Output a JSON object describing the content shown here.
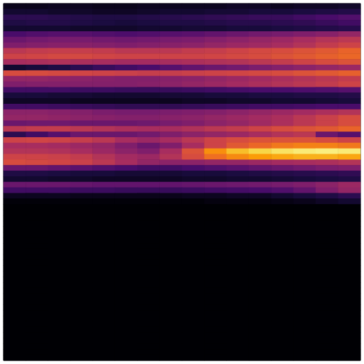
{
  "chart_data": {
    "type": "heatmap",
    "color": "inferno",
    "tick_labels": false,
    "color_range": [
      0,
      1
    ],
    "cells": [
      [
        0.04,
        0.04,
        0.05,
        0.05,
        0.04,
        0.04,
        0.05,
        0.05,
        0.05,
        0.05,
        0.06,
        0.06,
        0.05,
        0.06,
        0.06,
        0.07
      ],
      [
        0.08,
        0.08,
        0.07,
        0.07,
        0.06,
        0.06,
        0.07,
        0.08,
        0.08,
        0.09,
        0.09,
        0.1,
        0.1,
        0.11,
        0.12,
        0.13
      ],
      [
        0.15,
        0.15,
        0.14,
        0.13,
        0.12,
        0.12,
        0.13,
        0.14,
        0.15,
        0.16,
        0.17,
        0.18,
        0.18,
        0.2,
        0.22,
        0.24
      ],
      [
        0.12,
        0.13,
        0.13,
        0.12,
        0.11,
        0.1,
        0.11,
        0.12,
        0.12,
        0.13,
        0.14,
        0.14,
        0.15,
        0.16,
        0.18,
        0.2
      ],
      [
        0.08,
        0.08,
        0.08,
        0.07,
        0.07,
        0.07,
        0.08,
        0.08,
        0.09,
        0.09,
        0.1,
        0.1,
        0.11,
        0.12,
        0.13,
        0.14
      ],
      [
        0.22,
        0.24,
        0.25,
        0.25,
        0.24,
        0.23,
        0.24,
        0.25,
        0.26,
        0.28,
        0.3,
        0.32,
        0.33,
        0.35,
        0.37,
        0.4
      ],
      [
        0.3,
        0.32,
        0.33,
        0.33,
        0.32,
        0.31,
        0.32,
        0.33,
        0.34,
        0.36,
        0.38,
        0.4,
        0.42,
        0.45,
        0.48,
        0.5
      ],
      [
        0.35,
        0.36,
        0.37,
        0.37,
        0.36,
        0.35,
        0.36,
        0.37,
        0.38,
        0.4,
        0.42,
        0.43,
        0.45,
        0.48,
        0.52,
        0.55
      ],
      [
        0.5,
        0.52,
        0.53,
        0.53,
        0.52,
        0.5,
        0.5,
        0.5,
        0.52,
        0.53,
        0.55,
        0.57,
        0.58,
        0.6,
        0.62,
        0.65
      ],
      [
        0.55,
        0.56,
        0.57,
        0.57,
        0.56,
        0.55,
        0.55,
        0.55,
        0.55,
        0.56,
        0.57,
        0.58,
        0.6,
        0.62,
        0.64,
        0.66
      ],
      [
        0.45,
        0.46,
        0.47,
        0.46,
        0.45,
        0.44,
        0.44,
        0.45,
        0.46,
        0.47,
        0.48,
        0.5,
        0.52,
        0.55,
        0.58,
        0.6
      ],
      [
        0.08,
        0.1,
        0.12,
        0.15,
        0.18,
        0.2,
        0.22,
        0.25,
        0.28,
        0.3,
        0.32,
        0.34,
        0.36,
        0.38,
        0.4,
        0.42
      ],
      [
        0.58,
        0.58,
        0.57,
        0.56,
        0.55,
        0.54,
        0.53,
        0.53,
        0.54,
        0.55,
        0.56,
        0.57,
        0.58,
        0.6,
        0.62,
        0.64
      ],
      [
        0.4,
        0.4,
        0.39,
        0.38,
        0.37,
        0.36,
        0.36,
        0.37,
        0.38,
        0.4,
        0.42,
        0.44,
        0.46,
        0.48,
        0.5,
        0.52
      ],
      [
        0.35,
        0.36,
        0.36,
        0.36,
        0.36,
        0.36,
        0.37,
        0.38,
        0.4,
        0.42,
        0.44,
        0.46,
        0.48,
        0.5,
        0.52,
        0.55
      ],
      [
        0.2,
        0.2,
        0.2,
        0.19,
        0.19,
        0.18,
        0.18,
        0.18,
        0.19,
        0.2,
        0.21,
        0.22,
        0.22,
        0.23,
        0.24,
        0.25
      ],
      [
        0.1,
        0.1,
        0.09,
        0.09,
        0.08,
        0.08,
        0.08,
        0.09,
        0.09,
        0.1,
        0.1,
        0.11,
        0.11,
        0.12,
        0.12,
        0.13
      ],
      [
        0.06,
        0.06,
        0.06,
        0.05,
        0.05,
        0.05,
        0.05,
        0.05,
        0.06,
        0.06,
        0.07,
        0.07,
        0.08,
        0.08,
        0.09,
        0.1
      ],
      [
        0.2,
        0.2,
        0.19,
        0.18,
        0.17,
        0.16,
        0.16,
        0.16,
        0.17,
        0.18,
        0.19,
        0.2,
        0.2,
        0.21,
        0.22,
        0.22
      ],
      [
        0.38,
        0.38,
        0.37,
        0.36,
        0.34,
        0.33,
        0.33,
        0.34,
        0.35,
        0.36,
        0.38,
        0.4,
        0.42,
        0.44,
        0.46,
        0.48
      ],
      [
        0.4,
        0.4,
        0.39,
        0.38,
        0.37,
        0.36,
        0.36,
        0.37,
        0.38,
        0.4,
        0.42,
        0.44,
        0.46,
        0.5,
        0.54,
        0.58
      ],
      [
        0.3,
        0.31,
        0.31,
        0.3,
        0.3,
        0.3,
        0.31,
        0.33,
        0.35,
        0.38,
        0.4,
        0.43,
        0.46,
        0.5,
        0.54,
        0.58
      ],
      [
        0.5,
        0.52,
        0.52,
        0.5,
        0.48,
        0.46,
        0.45,
        0.45,
        0.47,
        0.5,
        0.52,
        0.55,
        0.58,
        0.6,
        0.62,
        0.65
      ],
      [
        0.15,
        0.2,
        0.25,
        0.3,
        0.3,
        0.3,
        0.32,
        0.35,
        0.38,
        0.4,
        0.42,
        0.45,
        0.48,
        0.5,
        0.3,
        0.25
      ],
      [
        0.55,
        0.56,
        0.55,
        0.53,
        0.5,
        0.45,
        0.42,
        0.45,
        0.5,
        0.55,
        0.58,
        0.6,
        0.6,
        0.6,
        0.58,
        0.55
      ],
      [
        0.45,
        0.45,
        0.44,
        0.42,
        0.4,
        0.35,
        0.3,
        0.35,
        0.45,
        0.55,
        0.62,
        0.66,
        0.7,
        0.72,
        0.72,
        0.7
      ],
      [
        0.48,
        0.48,
        0.47,
        0.45,
        0.42,
        0.38,
        0.35,
        0.45,
        0.6,
        0.75,
        0.85,
        0.9,
        0.93,
        0.95,
        0.96,
        0.95
      ],
      [
        0.55,
        0.55,
        0.54,
        0.52,
        0.48,
        0.44,
        0.42,
        0.48,
        0.58,
        0.68,
        0.74,
        0.78,
        0.8,
        0.82,
        0.82,
        0.8
      ],
      [
        0.58,
        0.57,
        0.56,
        0.54,
        0.5,
        0.45,
        0.4,
        0.38,
        0.38,
        0.4,
        0.4,
        0.42,
        0.44,
        0.45,
        0.46,
        0.48
      ],
      [
        0.3,
        0.3,
        0.28,
        0.26,
        0.24,
        0.22,
        0.2,
        0.2,
        0.22,
        0.24,
        0.26,
        0.28,
        0.3,
        0.32,
        0.34,
        0.35
      ],
      [
        0.12,
        0.12,
        0.11,
        0.1,
        0.1,
        0.09,
        0.09,
        0.09,
        0.1,
        0.1,
        0.11,
        0.12,
        0.13,
        0.14,
        0.15,
        0.16
      ],
      [
        0.08,
        0.08,
        0.07,
        0.07,
        0.06,
        0.06,
        0.06,
        0.06,
        0.07,
        0.07,
        0.08,
        0.08,
        0.09,
        0.1,
        0.11,
        0.12
      ],
      [
        0.3,
        0.3,
        0.3,
        0.29,
        0.28,
        0.28,
        0.28,
        0.28,
        0.29,
        0.3,
        0.31,
        0.32,
        0.33,
        0.35,
        0.38,
        0.42
      ],
      [
        0.2,
        0.2,
        0.2,
        0.19,
        0.19,
        0.18,
        0.18,
        0.18,
        0.19,
        0.2,
        0.21,
        0.22,
        0.24,
        0.28,
        0.35,
        0.4
      ],
      [
        0.05,
        0.05,
        0.05,
        0.04,
        0.04,
        0.04,
        0.04,
        0.04,
        0.05,
        0.05,
        0.06,
        0.06,
        0.08,
        0.1,
        0.12,
        0.15
      ],
      [
        0.01,
        0.01,
        0.01,
        0.01,
        0.01,
        0.01,
        0.01,
        0.01,
        0.01,
        0.02,
        0.02,
        0.02,
        0.03,
        0.04,
        0.06,
        0.08
      ],
      [
        0,
        0,
        0,
        0,
        0,
        0,
        0,
        0,
        0,
        0,
        0,
        0,
        0,
        0,
        0,
        0
      ],
      [
        0,
        0,
        0,
        0,
        0,
        0,
        0,
        0,
        0,
        0,
        0,
        0,
        0,
        0,
        0,
        0
      ],
      [
        0,
        0,
        0,
        0,
        0,
        0,
        0,
        0,
        0,
        0,
        0,
        0,
        0,
        0,
        0,
        0
      ],
      [
        0,
        0,
        0,
        0,
        0,
        0,
        0,
        0,
        0,
        0,
        0,
        0,
        0,
        0,
        0,
        0
      ],
      [
        0,
        0,
        0,
        0,
        0,
        0,
        0,
        0,
        0,
        0,
        0,
        0,
        0,
        0,
        0,
        0
      ],
      [
        0,
        0,
        0,
        0,
        0,
        0,
        0,
        0,
        0,
        0,
        0,
        0,
        0,
        0,
        0,
        0
      ],
      [
        0,
        0,
        0,
        0,
        0,
        0,
        0,
        0,
        0,
        0,
        0,
        0,
        0,
        0,
        0,
        0
      ],
      [
        0,
        0,
        0,
        0,
        0,
        0,
        0,
        0,
        0,
        0,
        0,
        0,
        0,
        0,
        0,
        0
      ],
      [
        0,
        0,
        0,
        0,
        0,
        0,
        0,
        0,
        0,
        0,
        0,
        0,
        0,
        0,
        0,
        0
      ],
      [
        0,
        0,
        0,
        0,
        0,
        0,
        0,
        0,
        0,
        0,
        0,
        0,
        0,
        0,
        0,
        0
      ],
      [
        0,
        0,
        0,
        0,
        0,
        0,
        0,
        0,
        0,
        0,
        0,
        0,
        0,
        0,
        0,
        0
      ],
      [
        0,
        0,
        0,
        0,
        0,
        0,
        0,
        0,
        0,
        0,
        0,
        0,
        0,
        0,
        0,
        0
      ],
      [
        0,
        0,
        0,
        0,
        0,
        0,
        0,
        0,
        0,
        0,
        0,
        0,
        0,
        0,
        0,
        0
      ],
      [
        0,
        0,
        0,
        0,
        0,
        0,
        0,
        0,
        0,
        0,
        0,
        0,
        0,
        0,
        0,
        0
      ],
      [
        0,
        0,
        0,
        0,
        0,
        0,
        0,
        0,
        0,
        0,
        0,
        0,
        0,
        0,
        0,
        0
      ],
      [
        0,
        0,
        0,
        0,
        0,
        0,
        0,
        0,
        0,
        0,
        0,
        0,
        0,
        0,
        0,
        0
      ],
      [
        0,
        0,
        0,
        0,
        0,
        0,
        0,
        0,
        0,
        0,
        0,
        0,
        0,
        0,
        0,
        0
      ],
      [
        0,
        0,
        0,
        0,
        0,
        0,
        0,
        0,
        0,
        0,
        0,
        0,
        0,
        0,
        0,
        0
      ],
      [
        0,
        0,
        0,
        0,
        0,
        0,
        0,
        0,
        0,
        0,
        0,
        0,
        0,
        0,
        0,
        0
      ],
      [
        0,
        0,
        0,
        0,
        0,
        0,
        0,
        0,
        0,
        0,
        0,
        0,
        0,
        0,
        0,
        0
      ],
      [
        0,
        0,
        0,
        0,
        0,
        0,
        0,
        0,
        0,
        0,
        0,
        0,
        0,
        0,
        0,
        0
      ],
      [
        0,
        0,
        0,
        0,
        0,
        0,
        0,
        0,
        0,
        0,
        0,
        0,
        0,
        0,
        0,
        0
      ],
      [
        0,
        0,
        0,
        0,
        0,
        0,
        0,
        0,
        0,
        0,
        0,
        0,
        0,
        0,
        0,
        0
      ],
      [
        0,
        0,
        0,
        0,
        0,
        0,
        0,
        0,
        0,
        0,
        0,
        0,
        0,
        0,
        0,
        0
      ],
      [
        0,
        0,
        0,
        0,
        0,
        0,
        0,
        0,
        0,
        0,
        0,
        0,
        0,
        0,
        0,
        0
      ],
      [
        0,
        0,
        0,
        0,
        0,
        0,
        0,
        0,
        0,
        0,
        0,
        0,
        0,
        0,
        0,
        0
      ],
      [
        0,
        0,
        0,
        0,
        0,
        0,
        0,
        0,
        0,
        0,
        0,
        0,
        0,
        0,
        0,
        0
      ],
      [
        0,
        0,
        0,
        0,
        0,
        0,
        0,
        0,
        0,
        0,
        0,
        0,
        0,
        0,
        0,
        0
      ]
    ]
  }
}
